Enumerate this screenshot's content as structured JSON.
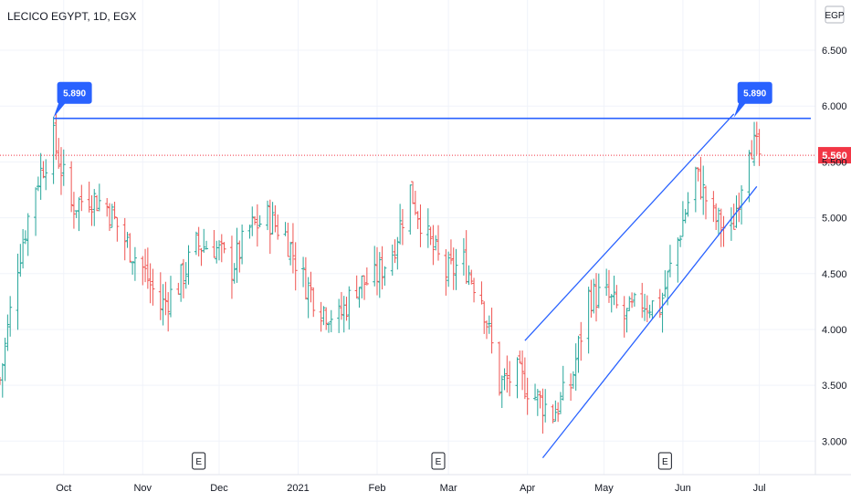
{
  "header": {
    "title": "LECICO EGYPT, 1D, EGX",
    "currency": "EGP"
  },
  "colors": {
    "up": "#26a69a",
    "down": "#ef5350",
    "line": "#2962ff",
    "last_price": "#f23645",
    "grid": "#f0f3fa"
  },
  "annotations": {
    "level_label_left": "5.890",
    "level_label_right": "5.890",
    "last_price_label": "5.560",
    "earnings_marker": "E"
  },
  "chart_data": {
    "type": "candlestick",
    "title": "LECICO EGYPT, 1D, EGX",
    "y_ticks": [
      "6.500",
      "6.000",
      "5.500",
      "5.000",
      "4.500",
      "4.000",
      "3.500",
      "3.000"
    ],
    "y_tick_values": [
      6.5,
      6.0,
      5.5,
      5.0,
      4.5,
      4.0,
      3.5,
      3.0
    ],
    "x_ticks": [
      "Oct",
      "Nov",
      "Dec",
      "2021",
      "Feb",
      "Mar",
      "Apr",
      "May",
      "Jun",
      "Jul"
    ],
    "x_tick_dates": [
      "2020-10-01",
      "2020-11-01",
      "2020-12-01",
      "2021-01-01",
      "2021-02-01",
      "2021-03-01",
      "2021-04-01",
      "2021-05-01",
      "2021-06-01",
      "2021-07-01"
    ],
    "ylim": [
      2.7,
      6.95
    ],
    "xlim": [
      "2020-09-06",
      "2021-07-23"
    ],
    "horizontal_level": 5.89,
    "last_price": 5.56,
    "earnings_dates": [
      "2020-11-23",
      "2021-02-25",
      "2021-05-25"
    ],
    "trend_channel": {
      "upper": [
        [
          "2021-03-31",
          3.9
        ],
        [
          "2021-06-21",
          5.93
        ]
      ],
      "lower": [
        [
          "2021-04-07",
          2.85
        ],
        [
          "2021-06-30",
          5.28
        ]
      ]
    },
    "price_points": [
      [
        "2020-09-06",
        3.55
      ],
      [
        "2020-09-13",
        4.6
      ],
      [
        "2020-09-20",
        5.3
      ],
      [
        "2020-09-27",
        5.7
      ],
      [
        "2020-10-04",
        5.1
      ],
      [
        "2020-10-11",
        5.2
      ],
      [
        "2020-10-18",
        5.1
      ],
      [
        "2020-10-25",
        4.8
      ],
      [
        "2020-11-01",
        4.55
      ],
      [
        "2020-11-08",
        4.2
      ],
      [
        "2020-11-15",
        4.4
      ],
      [
        "2020-11-22",
        4.75
      ],
      [
        "2020-11-29",
        4.75
      ],
      [
        "2020-12-06",
        4.55
      ],
      [
        "2020-12-13",
        4.9
      ],
      [
        "2020-12-20",
        5.0
      ],
      [
        "2020-12-27",
        4.85
      ],
      [
        "2021-01-03",
        4.45
      ],
      [
        "2021-01-10",
        4.2
      ],
      [
        "2021-01-17",
        4.1
      ],
      [
        "2021-01-24",
        4.4
      ],
      [
        "2021-01-31",
        4.45
      ],
      [
        "2021-02-07",
        4.7
      ],
      [
        "2021-02-14",
        5.25
      ],
      [
        "2021-02-21",
        4.8
      ],
      [
        "2021-02-28",
        4.5
      ],
      [
        "2021-03-07",
        4.6
      ],
      [
        "2021-03-14",
        4.3
      ],
      [
        "2021-03-21",
        3.5
      ],
      [
        "2021-03-28",
        3.6
      ],
      [
        "2021-04-04",
        3.4
      ],
      [
        "2021-04-11",
        3.25
      ],
      [
        "2021-04-18",
        3.5
      ],
      [
        "2021-04-25",
        4.3
      ],
      [
        "2021-05-02",
        4.3
      ],
      [
        "2021-05-09",
        4.1
      ],
      [
        "2021-05-16",
        4.25
      ],
      [
        "2021-05-23",
        4.2
      ],
      [
        "2021-05-30",
        4.8
      ],
      [
        "2021-06-06",
        5.4
      ],
      [
        "2021-06-13",
        5.0
      ],
      [
        "2021-06-20",
        4.85
      ],
      [
        "2021-06-27",
        5.7
      ],
      [
        "2021-07-01",
        5.56
      ]
    ]
  }
}
